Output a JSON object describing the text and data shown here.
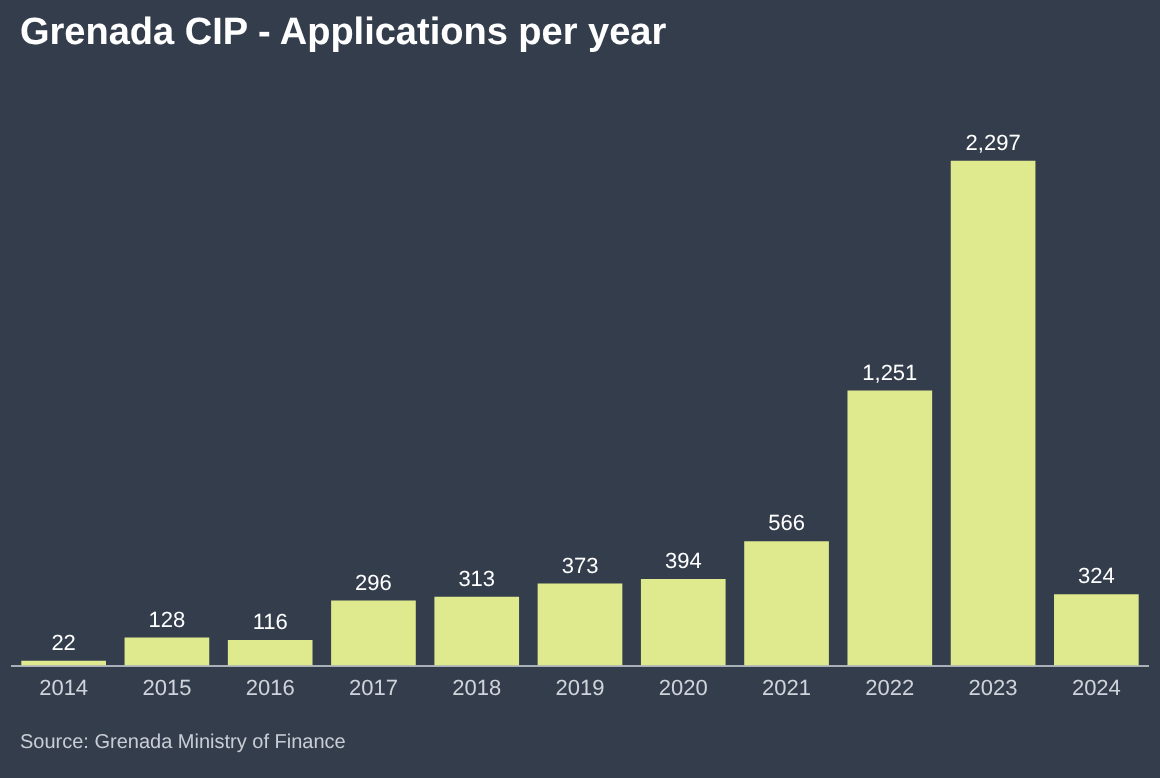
{
  "chart_data": {
    "type": "bar",
    "title": "Grenada CIP - Applications per year",
    "categories": [
      "2014",
      "2015",
      "2016",
      "2017",
      "2018",
      "2019",
      "2020",
      "2021",
      "2022",
      "2023",
      "2024"
    ],
    "values": [
      22,
      128,
      116,
      296,
      313,
      373,
      394,
      566,
      1251,
      2297,
      324
    ],
    "value_labels": [
      "22",
      "128",
      "116",
      "296",
      "313",
      "373",
      "394",
      "566",
      "1,251",
      "2,297",
      "324"
    ],
    "color": "#dfe98e",
    "grid": false,
    "legend": false,
    "annotations": [
      "Source: Grenada Ministry of Finance"
    ]
  }
}
